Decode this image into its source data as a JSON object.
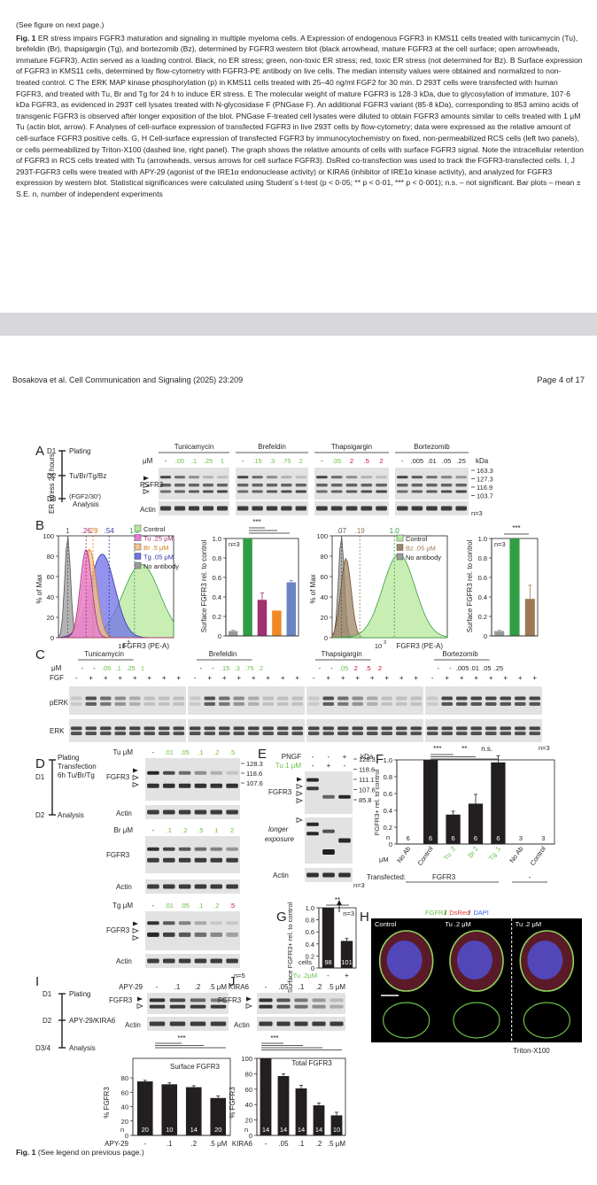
{
  "legend": {
    "see_next": "(See figure on next page.)",
    "fig_label": "Fig. 1",
    "text": "ER stress impairs FGFR3 maturation and signaling in multiple myeloma cells. A Expression of endogenous FGFR3 in KMS11 cells treated with tunicamycin (Tu), brefeldin (Br), thapsigargin (Tg), and bortezomib (Bz), determined by FGFR3 western blot (black arrowhead, mature FGFR3 at the cell surface; open arrowheads, immature FGFR3). Actin served as a loading control. Black, no ER stress; green, non-toxic ER stress; red, toxic ER stress (not determined for Bz). B Surface expression of FGFR3 in KMS11 cells, determined by flow-cytometry with FGFR3-PE antibody on live cells. The median intensity values were obtained and normalized to non-treated control. C The ERK MAP kinase phosphorylation (p) in KMS11 cells treated with 25–40 ng/ml FGF2 for 30 min. D 293T cells were transfected with human FGFR3, and treated with Tu, Br and Tg for 24 h to induce ER stress. E The molecular weight of mature FGFR3 is 128·3 kDa, due to glycosylation of immature, 107·6 kDa FGFR3, as evidenced in 293T cell lysates treated with N-glycosidase F (PNGase F). An additional FGFR3 variant (85·8 kDa), corresponding to 853 amino acids of transgenic FGFR3 is observed after longer exposition of the blot. PNGase F-treated cell lysates were diluted to obtain FGFR3 amounts similar to cells treated with 1 μM Tu (actin blot, arrow). F Analyses of cell-surface expression of transfected FGFR3 in live 293T cells by flow-cytometry; data were expressed as the relative amount of cell-surface FGFR3 positive cells. G, H Cell-surface expression of transfected FGFR3 by immunocytochemistry on fixed, non-permeabilized RCS cells (left two panels), or cells permeabilized by Triton-X100 (dashed line, right panel). The graph shows the relative amounts of cells with surface FGFR3 signal. Note the intracellular retention of FGFR3 in RCS cells treated with Tu (arrowheads, versus arrows for cell surface FGFR3). DsRed co-transfection was used to track the FGFR3-transfected cells. I, J 293T-FGFR3 cells were treated with APY-29 (agonist of the IRE1α endonuclease activity) or KIRA6 (inhibitor of IRE1α kinase activity), and analyzed for FGFR3 expression by western blot. Statistical significances were calculated using Student´s t-test (p < 0·05; ** p < 0·01, *** p < 0·001); n.s. – not significant. Bar plots – mean ± S.E. n, number of independent experiments"
  },
  "header": {
    "citation": "Bosakova et al. Cell Communication and Signaling (2025) 23:209",
    "page": "Page 4 of 17"
  },
  "panelA": {
    "letter": "A",
    "timeline": [
      "D1",
      "Plating",
      "D2",
      "Tu/Br/Tg/Bz",
      "(FGF2/30')",
      "D3",
      "Analysis"
    ],
    "side_label": "ER stress 24 hours",
    "groups": [
      "Tunicamycin",
      "Brefeldin",
      "Thapsigargin",
      "Bortezomib"
    ],
    "um_label": "μM",
    "tu_doses": [
      "-",
      ".05",
      ".1",
      ".25",
      "1"
    ],
    "br_doses": [
      "-",
      ".15",
      ".3",
      ".75",
      "2"
    ],
    "tg_doses": [
      "-",
      ".05",
      "2",
      ".5",
      "2"
    ],
    "bz_doses": [
      "-",
      ".005",
      ".01",
      ".05",
      ".25"
    ],
    "rows": [
      "FGFR3",
      "Actin"
    ],
    "kda": "kDa",
    "markers": [
      "163.3",
      "127.3",
      "116.9",
      "103.7"
    ],
    "n": "n=3"
  },
  "panelB": {
    "letter": "B",
    "hist1_medians": [
      "1",
      ".26",
      ".29",
      ".54",
      "1.0"
    ],
    "hist1_legend": [
      "Control",
      "Tu .25 μM",
      "Br .5 μM",
      "Tg .05 μM",
      "No antibody"
    ],
    "hist_ylabel": "% of Max",
    "hist_xlabel": "FGFR3 (PE-A)",
    "hist_yticks": [
      "0",
      "20",
      "40",
      "60",
      "80",
      "100"
    ],
    "xtick_main": "10",
    "xtick_exp": "3",
    "bar_ylabel": "Surface FGFR3 rel. to control",
    "bar_yticks": [
      "0",
      "0.2",
      "0.4",
      "0.6",
      "0.8",
      "1.0"
    ],
    "bar_n": "n=3",
    "sig": "***",
    "hist2_medians": [
      ".07",
      ".19",
      "1.0"
    ],
    "hist2_legend": [
      "Control",
      "Bz .05 μM",
      "No antibody"
    ]
  },
  "panelC": {
    "letter": "C",
    "groups": [
      "Tunicamycin",
      "Brefeldin",
      "Thapsigargin",
      "Bortezomib"
    ],
    "um_label": "μM",
    "fgf_label": "FGF",
    "tu_doses": [
      "-",
      "-",
      ".05",
      ".1",
      ".25",
      "1"
    ],
    "br_doses": [
      "-",
      "-",
      ".15",
      ".3",
      ".75",
      "2"
    ],
    "tg_doses": [
      "-",
      "-",
      ".05",
      "2",
      ".5",
      "2"
    ],
    "bz_doses": [
      "-",
      "-",
      ".005",
      ".01",
      ".05",
      ".25"
    ],
    "fgf_signs": [
      "-",
      "+",
      "+",
      "+",
      "+",
      "+"
    ],
    "rows": [
      "pERK",
      "ERK"
    ],
    "n": "n=3"
  },
  "panelD": {
    "letter": "D",
    "timeline": [
      "D1",
      "Plating",
      "Transfection",
      "6h Tu/Br/Tg",
      "D2",
      "Analysis"
    ],
    "tu_label": "Tu μM",
    "tu_doses": [
      "-",
      ".01",
      ".05",
      ".1",
      ".2",
      ".5"
    ],
    "br_label": "Br μM",
    "br_doses": [
      "-",
      ".1",
      ".2",
      ".5",
      "1",
      "2"
    ],
    "tg_label": "Tg μM",
    "tg_doses": [
      "-",
      ".01",
      ".05",
      ".1",
      ".2",
      ".5"
    ],
    "rows": [
      "FGFR3",
      "Actin"
    ],
    "markers": [
      "128.3",
      "118.6",
      "107.6"
    ],
    "n": "n=5"
  },
  "panelE": {
    "letter": "E",
    "pngf_label": "PNGF",
    "pngf_signs": [
      "-",
      "-",
      "+"
    ],
    "tu_label": "Tu 1 μM",
    "tu_signs": [
      "-",
      "+",
      "-"
    ],
    "kda": "kDa",
    "markers": [
      "128.3",
      "118.6",
      "111.1",
      "107.6",
      "85.8"
    ],
    "rows": [
      "FGFR3",
      "longer",
      "exposure",
      "Actin"
    ],
    "n": "n=3"
  },
  "panelF": {
    "letter": "F",
    "ylabel": "FGFR3+ rel. to control",
    "yticks": [
      "0",
      "0.2",
      "0.4",
      "0.6",
      "0.8",
      "1.0"
    ],
    "sig": [
      "***",
      "**",
      "n.s."
    ],
    "um_label": "μM",
    "categories": [
      "No Ab",
      "Control",
      "Tu .2",
      "Br 2",
      "Tg .1",
      "No Ab",
      "Control"
    ],
    "n_label": "n",
    "n_values": [
      "6",
      "6",
      "6",
      "6",
      "6",
      "3",
      "3"
    ],
    "transfected_label": "Transfected:",
    "transfected_value": "FGFR3",
    "transfected_dash": "-"
  },
  "panelG": {
    "letter": "G",
    "ylabel": "Surface FGFR3+ rel. to control",
    "yticks": [
      "0",
      "0.2",
      "0.4",
      "0.6",
      "0.8",
      "1.0"
    ],
    "sig": "**",
    "n": "n=3",
    "cells_label": "cells",
    "cells": [
      "98",
      "101"
    ],
    "tu_label": "Tu .2μM",
    "tu_signs": [
      "-",
      "+"
    ]
  },
  "panelH": {
    "letter": "H",
    "title_parts": [
      "FGFR3",
      "/",
      "DsRed",
      "/",
      "DAPI"
    ],
    "panels": [
      "Control",
      "Tu .2 μM",
      "Tu .2 μM"
    ],
    "triton": "Triton-X100"
  },
  "panelI": {
    "letter": "I",
    "timeline": [
      "D1",
      "Plating",
      "D2",
      "APY-29/KIRA6",
      "D3/4",
      "Analysis"
    ],
    "drug_label": "APY-29",
    "doses": [
      "-",
      ".1",
      ".2",
      ".5 μM"
    ],
    "rows": [
      "FGFR3",
      "Actin"
    ],
    "sig": "***",
    "chart_title": "Surface FGFR3",
    "ylabel": "% FGFR3",
    "yticks": [
      "0",
      "20",
      "40",
      "60",
      "80"
    ],
    "n_label": "n",
    "n_values": [
      "20",
      "10",
      "14",
      "20"
    ],
    "x_labels": [
      "-",
      ".1",
      ".2",
      ".5 μM"
    ]
  },
  "panelJ": {
    "letter": "J",
    "drug_label": "KIRA6",
    "doses": [
      "-",
      ".05",
      ".1",
      ".2",
      ".5 μM"
    ],
    "rows": [
      "FGFR3",
      "Actin"
    ],
    "sig": "***",
    "chart_title": "Total FGFR3",
    "ylabel": "% FGFR3",
    "yticks": [
      "0",
      "20",
      "40",
      "60",
      "80",
      "100"
    ],
    "n_label": "n",
    "n_values": [
      "14",
      "14",
      "14",
      "14",
      "10"
    ],
    "x_labels": [
      "-",
      ".05",
      ".1",
      ".2",
      ".5 μM"
    ]
  },
  "footer": {
    "fig_label": "Fig. 1",
    "text": "(See legend on previous page.)"
  },
  "colors": {
    "green": "#6abf45",
    "red": "#c8102e",
    "black": "#231f20",
    "control_fill": "#b7e89b",
    "tu_fill": "#e879d6",
    "br_fill": "#f6c38d",
    "tg_fill": "#6f6fe8",
    "noab_fill": "#9a9a9a",
    "bz_fill": "#9d8566"
  },
  "chart_data": [
    {
      "type": "bar",
      "panel": "B (left)",
      "ylabel": "Surface FGFR3 rel. to control",
      "ylim": [
        0,
        1.0
      ],
      "categories": [
        "No antibody",
        "Control",
        "Tu .25 μM",
        "Br .5 μM",
        "Tg .05 μM"
      ],
      "values": [
        0.05,
        1.0,
        0.37,
        0.26,
        0.55
      ],
      "errors": [
        0.01,
        0.0,
        0.07,
        0.0,
        0.02
      ],
      "colors": [
        "#9a9a9a",
        "#2f9e44",
        "#a0306e",
        "#f08a24",
        "#6a83c4"
      ]
    },
    {
      "type": "bar",
      "panel": "B (right)",
      "ylabel": "Surface FGFR3 rel. to control",
      "ylim": [
        0,
        1.0
      ],
      "categories": [
        "No antibody",
        "Control",
        "Bz .05 μM"
      ],
      "values": [
        0.05,
        1.0,
        0.38
      ],
      "errors": [
        0.01,
        0.0,
        0.14
      ],
      "colors": [
        "#9a9a9a",
        "#2f9e44",
        "#9d7a55"
      ]
    },
    {
      "type": "bar",
      "panel": "F",
      "ylabel": "FGFR3+ rel. to control",
      "ylim": [
        0,
        1.0
      ],
      "categories": [
        "No Ab",
        "Control",
        "Tu .2",
        "Br 2",
        "Tg .1",
        "No Ab",
        "Control"
      ],
      "values": [
        0.0,
        1.0,
        0.35,
        0.48,
        0.97,
        0.0,
        0.0
      ],
      "errors": [
        0.0,
        0.0,
        0.04,
        0.11,
        0.08,
        0.0,
        0.0
      ]
    },
    {
      "type": "bar",
      "panel": "G",
      "ylabel": "Surface FGFR3+ rel. to control",
      "ylim": [
        0,
        1.0
      ],
      "categories": [
        "-",
        "+"
      ],
      "values": [
        1.0,
        0.45
      ],
      "errors": [
        0.0,
        0.04
      ]
    },
    {
      "type": "bar",
      "panel": "I",
      "title": "Surface FGFR3",
      "ylabel": "% FGFR3",
      "ylim": [
        0,
        80
      ],
      "categories": [
        "-",
        ".1",
        ".2",
        ".5 μM"
      ],
      "values": [
        75,
        71,
        67,
        52
      ],
      "errors": [
        1.5,
        2,
        2,
        3
      ]
    },
    {
      "type": "bar",
      "panel": "J",
      "title": "Total FGFR3",
      "ylabel": "% FGFR3",
      "ylim": [
        0,
        100
      ],
      "categories": [
        "-",
        ".05",
        ".1",
        ".2",
        ".5 μM"
      ],
      "values": [
        100,
        77,
        61,
        39,
        26
      ],
      "errors": [
        0,
        3,
        4,
        3,
        4
      ]
    }
  ]
}
